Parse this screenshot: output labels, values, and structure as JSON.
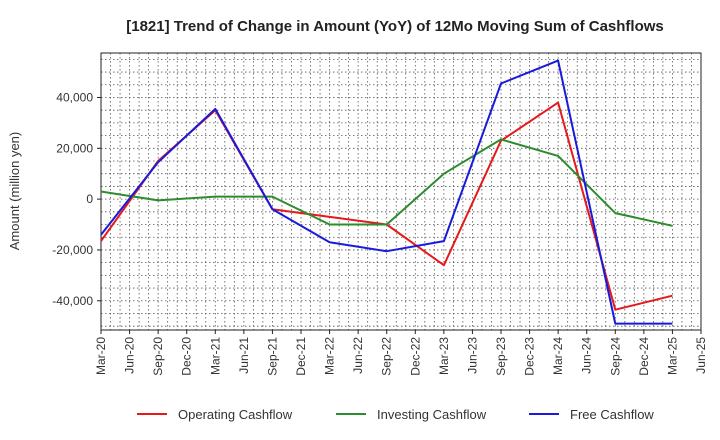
{
  "chart_data": {
    "type": "line",
    "title": "[1821]  Trend of Change in Amount (YoY) of 12Mo Moving Sum of Cashflows",
    "xlabel": "",
    "ylabel": "Amount (million yen)",
    "ylim": [
      -51500,
      57500
    ],
    "yticks": [
      -40000,
      -20000,
      0,
      20000,
      40000
    ],
    "ytick_labels": [
      "-40,000",
      "-20,000",
      "0",
      "20,000",
      "40,000"
    ],
    "categories": [
      "Mar-20",
      "Jun-20",
      "Sep-20",
      "Dec-20",
      "Mar-21",
      "Jun-21",
      "Sep-21",
      "Dec-21",
      "Mar-22",
      "Jun-22",
      "Sep-22",
      "Dec-22",
      "Mar-23",
      "Jun-23",
      "Sep-23",
      "Dec-23",
      "Mar-24",
      "Jun-24",
      "Sep-24",
      "Dec-24",
      "Mar-25",
      "Jun-25"
    ],
    "series": [
      {
        "name": "Operating Cashflow",
        "color": "#e41a1c",
        "values": [
          -16500,
          null,
          15000,
          null,
          35000,
          null,
          -4000,
          null,
          -7000,
          null,
          -10000,
          null,
          -26000,
          null,
          23000,
          null,
          38000,
          null,
          -43500,
          null,
          -38000,
          null
        ]
      },
      {
        "name": "Investing Cashflow",
        "color": "#2e8b2e",
        "values": [
          3000,
          null,
          -500,
          null,
          1000,
          null,
          1000,
          null,
          -10000,
          null,
          -10000,
          null,
          10000,
          null,
          23500,
          null,
          17000,
          null,
          -5500,
          null,
          -10500,
          null
        ]
      },
      {
        "name": "Free Cashflow",
        "color": "#1a1adb",
        "values": [
          -14000,
          null,
          14500,
          null,
          35500,
          null,
          -4000,
          null,
          -17000,
          null,
          -20500,
          null,
          -16500,
          null,
          45500,
          null,
          54500,
          null,
          -49000,
          null,
          -49000,
          null
        ]
      }
    ],
    "legend": "bottom",
    "grid": true
  }
}
